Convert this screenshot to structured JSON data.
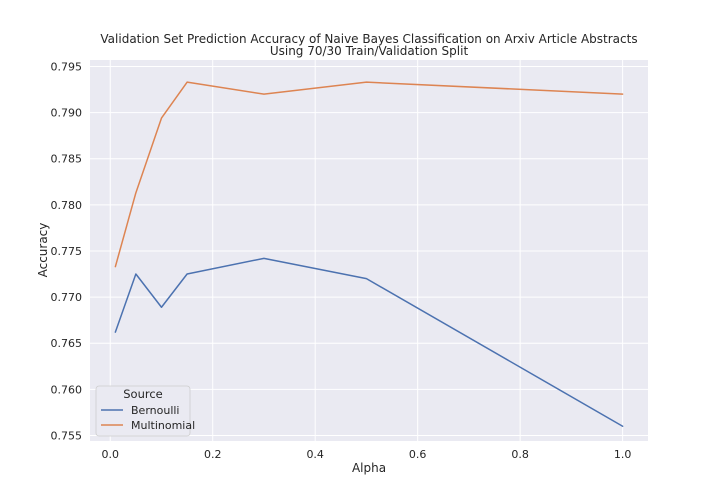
{
  "chart_data": {
    "type": "line",
    "title_lines": [
      "Validation Set Prediction Accuracy of Naive Bayes Classification on Arxiv Article Abstracts",
      "Using 70/30 Train/Validation Split"
    ],
    "xlabel": "Alpha",
    "ylabel": "Accuracy",
    "xlim": [
      -0.0395,
      1.0495
    ],
    "ylim": [
      0.7544,
      0.7957
    ],
    "xticks": [
      0.0,
      0.2,
      0.4,
      0.6,
      0.8,
      1.0
    ],
    "xtick_labels": [
      "0.0",
      "0.2",
      "0.4",
      "0.6",
      "0.8",
      "1.0"
    ],
    "yticks": [
      0.755,
      0.76,
      0.765,
      0.77,
      0.775,
      0.78,
      0.785,
      0.79,
      0.795
    ],
    "ytick_labels": [
      "0.755",
      "0.760",
      "0.765",
      "0.770",
      "0.775",
      "0.780",
      "0.785",
      "0.790",
      "0.795"
    ],
    "grid": true,
    "legend": {
      "title": "Source",
      "placement": "lower-left"
    },
    "series": [
      {
        "name": "Bernoulli",
        "color": "#4c72b0",
        "x": [
          0.01,
          0.05,
          0.1,
          0.15,
          0.3,
          0.5,
          1.0
        ],
        "y": [
          0.7662,
          0.7725,
          0.7689,
          0.7725,
          0.7742,
          0.772,
          0.756
        ]
      },
      {
        "name": "Multinomial",
        "color": "#dd8452",
        "x": [
          0.01,
          0.05,
          0.1,
          0.15,
          0.3,
          0.5,
          1.0
        ],
        "y": [
          0.7733,
          0.7813,
          0.7894,
          0.7933,
          0.792,
          0.7933,
          0.792
        ]
      }
    ]
  }
}
